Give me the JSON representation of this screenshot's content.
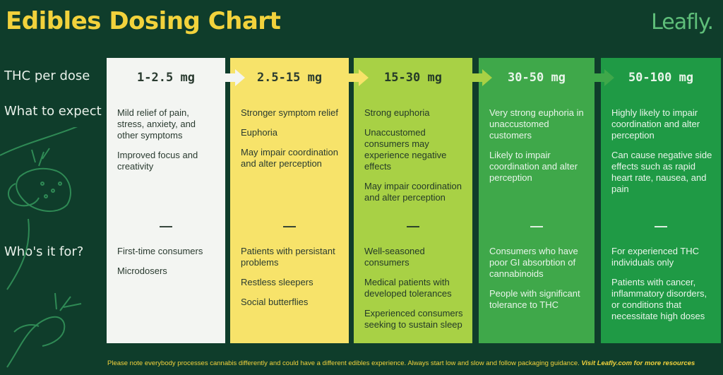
{
  "title": "Edibles Dosing Chart",
  "brand": "Leafly.",
  "row_labels": {
    "thc": "THC per dose",
    "expect": "What to expect",
    "who": "Who's it for?"
  },
  "columns": [
    {
      "dose": "1-2.5 mg",
      "bg": "#f3f5f2",
      "fg": "#2a3b30",
      "expect": [
        "Mild relief of pain, stress, anxiety, and other symptoms",
        "Improved focus and creativity"
      ],
      "who": [
        "First-time consumers",
        "Microdosers"
      ]
    },
    {
      "dose": "2.5-15 mg",
      "bg": "#f7e36a",
      "fg": "#2a3b30",
      "expect": [
        "Stronger symptom relief",
        "Euphoria",
        "May impair coordination and alter perception"
      ],
      "who": [
        "Patients with persistant problems",
        "Restless sleepers",
        "Social butterflies"
      ]
    },
    {
      "dose": "15-30 mg",
      "bg": "#a8d145",
      "fg": "#243a28",
      "expect": [
        "Strong euphoria",
        "Unaccustomed consumers may experience negative effects",
        "May impair coordination and alter perception"
      ],
      "who": [
        "Well-seasoned consumers",
        "Medical patients with developed tolerances",
        "Experienced consumers seeking to sustain sleep"
      ]
    },
    {
      "dose": "30-50 mg",
      "bg": "#3fa84a",
      "fg": "#e9f5ea",
      "expect": [
        "Very strong euphoria in unaccustomed customers",
        "Likely to impair coordination and alter perception"
      ],
      "who": [
        "Consumers who have poor GI absorbtion of cannabinoids",
        "People with significant tolerance to THC"
      ]
    },
    {
      "dose": "50-100 mg",
      "bg": "#1f9a45",
      "fg": "#e9f5ea",
      "expect": [
        "Highly likely to impair coordination and alter perception",
        "Can cause negative side effects such as rapid heart rate, nausea, and pain"
      ],
      "who": [
        "For experienced THC individuals only",
        "Patients with cancer, inflammatory disorders, or conditions that necessitate high doses"
      ]
    }
  ],
  "dash": "—",
  "footer": {
    "note": "Please note everybody processes cannabis differently and could have a different edibles experience. Always start low and slow and follow packaging guidance. ",
    "link": "Visit Leafly.com for more resources"
  },
  "colors": {
    "background": "#0f3d2b",
    "title": "#f2d23c",
    "brand": "#5fbf7a"
  },
  "icons": [
    "edible-fruit-icon",
    "hand-leaf-icon"
  ]
}
